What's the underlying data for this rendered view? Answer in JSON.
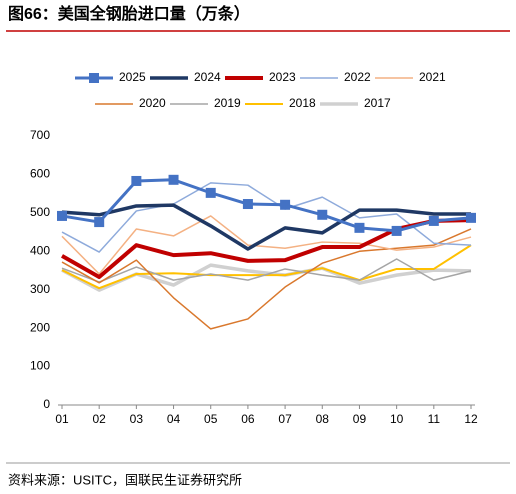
{
  "chart_data": {
    "type": "line",
    "title": "图66：美国全钢胎进口量（万条）",
    "source": "资料来源：USITC，国联民生证券研究所",
    "categories": [
      "01",
      "02",
      "03",
      "04",
      "05",
      "06",
      "07",
      "08",
      "09",
      "10",
      "11",
      "12"
    ],
    "ylim": [
      0,
      700
    ],
    "yticks": [
      0,
      100,
      200,
      300,
      400,
      500,
      600,
      700
    ],
    "grid": false,
    "series": [
      {
        "name": "2025",
        "color": "#4472c4",
        "marker": "square",
        "values": [
          492,
          476,
          583,
          586,
          552,
          523,
          521,
          495,
          461,
          453,
          479,
          487
        ]
      },
      {
        "name": "2024",
        "color": "#1f3864",
        "values": [
          502,
          495,
          518,
          520,
          466,
          406,
          461,
          448,
          507,
          507,
          497,
          497
        ]
      },
      {
        "name": "2023",
        "color": "#c00000",
        "values": [
          388,
          333,
          416,
          390,
          395,
          375,
          377,
          411,
          411,
          458,
          479,
          481
        ]
      },
      {
        "name": "2022",
        "color": "#8eaadb",
        "values": [
          450,
          398,
          505,
          523,
          578,
          572,
          510,
          541,
          487,
          497,
          421,
          416
        ]
      },
      {
        "name": "2021",
        "color": "#f4b183",
        "values": [
          439,
          341,
          458,
          440,
          492,
          416,
          408,
          424,
          421,
          403,
          411,
          437
        ]
      },
      {
        "name": "2020",
        "color": "#d9782d",
        "values": [
          372,
          318,
          377,
          279,
          198,
          224,
          307,
          369,
          400,
          408,
          416,
          458
        ]
      },
      {
        "name": "2019",
        "color": "#a5a5a5",
        "values": [
          356,
          320,
          359,
          325,
          341,
          325,
          354,
          338,
          325,
          380,
          325,
          349
        ]
      },
      {
        "name": "2018",
        "color": "#ffc000",
        "values": [
          351,
          304,
          341,
          343,
          338,
          338,
          338,
          356,
          325,
          354,
          354,
          416
        ]
      },
      {
        "name": "2017",
        "color": "#d0d0d0",
        "values": [
          351,
          299,
          341,
          312,
          364,
          349,
          338,
          356,
          317,
          338,
          351,
          349
        ]
      }
    ]
  }
}
